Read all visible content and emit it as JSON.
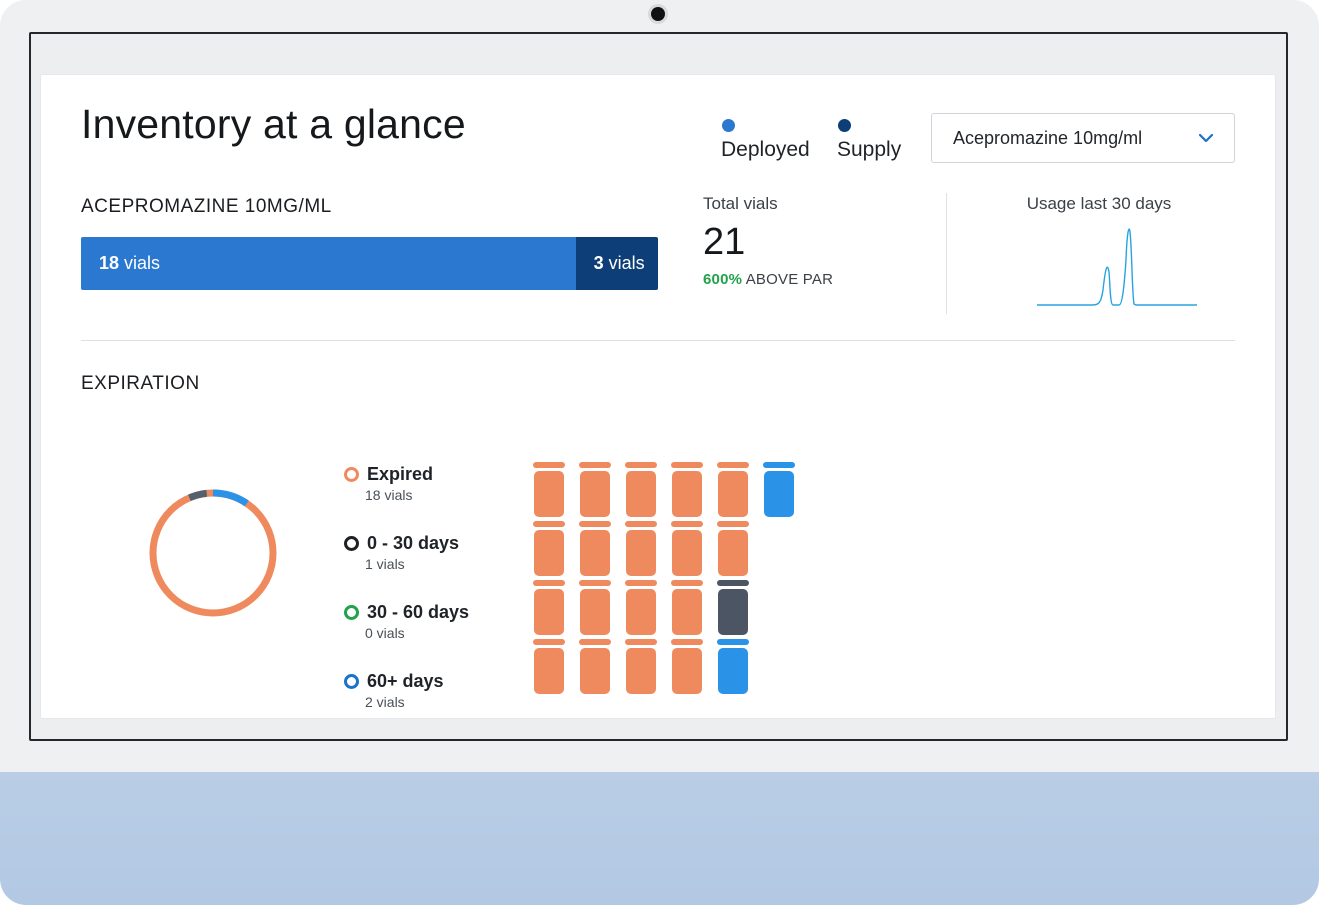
{
  "header": {
    "title": "Inventory at a glance",
    "legend": [
      {
        "label": "Deployed",
        "color": "#2b78d1"
      },
      {
        "label": "Supply",
        "color": "#0e3e78"
      }
    ],
    "drug_select": {
      "value": "Acepromazine 10mg/ml",
      "icon": "chevron-down-icon"
    }
  },
  "drug_section": {
    "label": "ACEPROMAZINE 10MG/ML",
    "deployed": {
      "count": "18",
      "unit": "vials",
      "value": 18
    },
    "supply": {
      "count": "3",
      "unit": "vials",
      "value": 3
    }
  },
  "totals": {
    "label": "Total vials",
    "value": "21",
    "par_percent": "600%",
    "par_text": "ABOVE PAR"
  },
  "usage": {
    "label": "Usage last 30 days",
    "color": "#29a3df"
  },
  "expiration": {
    "label": "EXPIRATION",
    "categories": [
      {
        "name": "Expired",
        "count": "18 vials",
        "vials": 18,
        "color": "#ef8a5e"
      },
      {
        "name": "0 - 30 days",
        "count": "1 vials",
        "vials": 1,
        "color": "#4b5563"
      },
      {
        "name": "30 - 60 days",
        "count": "0 vials",
        "vials": 0,
        "color": "#22a24a"
      },
      {
        "name": "60+ days",
        "count": "2 vials",
        "vials": 2,
        "color": "#2a93e8"
      }
    ],
    "ring_colors": {
      "expired": "#ef8a5e",
      "soon": "#1d2227",
      "mid": "#22a24a",
      "later": "#1a73c7"
    }
  }
}
